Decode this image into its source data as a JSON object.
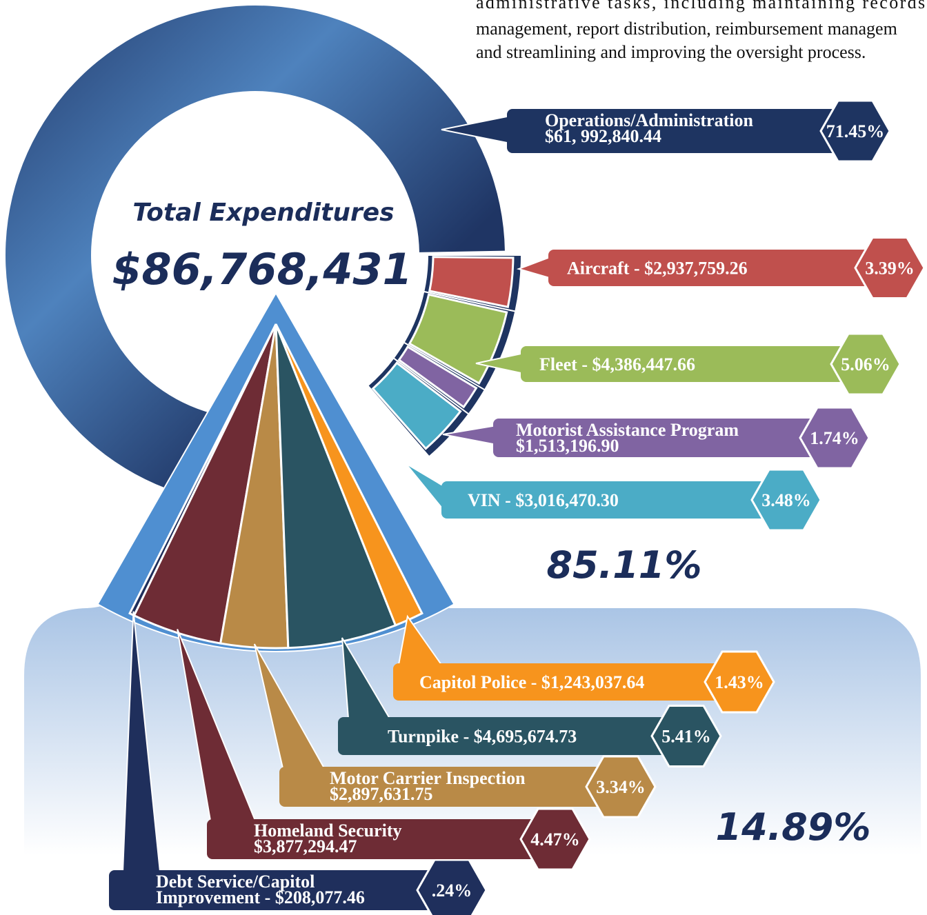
{
  "text_lines": [
    "administrative tasks, including maintaining records,",
    "management, report distribution, reimbursement managem",
    "and streamlining and improving the oversight process."
  ],
  "chart_data": [
    {
      "type": "donut",
      "title": "Total Expenditures",
      "total": "$86,768,431",
      "share": "85.11%",
      "categories": [
        [
          "Operations/Administration",
          "$61, 992,840.44"
        ],
        [
          "Aircraft - $2,937,759.26"
        ],
        [
          "Fleet - $4,386,447.66"
        ],
        [
          "Motorist Assistance Program",
          "$1,513,196.90"
        ],
        [
          "VIN - $3,016,470.30"
        ]
      ],
      "values": [
        71.45,
        3.39,
        5.06,
        1.74,
        3.48
      ],
      "value_labels": [
        "71.45%",
        "3.39%",
        "5.06%",
        "1.74%",
        "3.48%"
      ],
      "colors": [
        "#1e3461",
        "#c0504d",
        "#9bbb59",
        "#8064a2",
        "#4bacc6"
      ]
    },
    {
      "type": "fan",
      "share": "14.89%",
      "categories": [
        [
          "Debt Service/Capitol",
          "Improvement - $208,077.46"
        ],
        [
          "Homeland Security",
          "$3,877,294.47"
        ],
        [
          "Motor Carrier Inspection",
          "$2,897,631.75"
        ],
        [
          "Turnpike - $4,695,674.73"
        ],
        [
          "Capitol Police - $1,243,037.64"
        ]
      ],
      "values": [
        0.24,
        4.47,
        3.34,
        5.41,
        1.43
      ],
      "value_labels": [
        ".24%",
        "4.47%",
        "3.34%",
        "5.41%",
        "1.43%"
      ],
      "colors": [
        "#1f2f5c",
        "#6e2c35",
        "#b98a47",
        "#2a5462",
        "#f7941d"
      ]
    }
  ]
}
